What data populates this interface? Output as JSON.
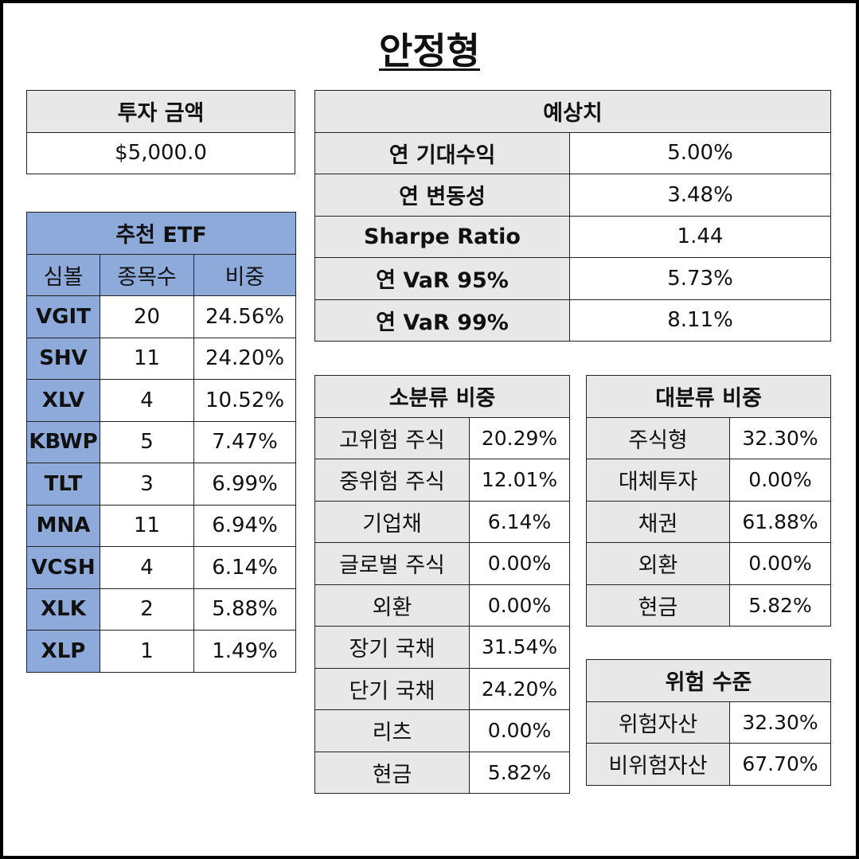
{
  "page_title": "안정형",
  "investment": {
    "header": "투자 금액",
    "value": "$5,000.0"
  },
  "recommended_etf": {
    "header": "추천 ETF",
    "columns": [
      "심볼",
      "종목수",
      "비중"
    ],
    "rows": [
      {
        "symbol": "VGIT",
        "count": "20",
        "weight": "24.56%"
      },
      {
        "symbol": "SHV",
        "count": "11",
        "weight": "24.20%"
      },
      {
        "symbol": "XLV",
        "count": "4",
        "weight": "10.52%"
      },
      {
        "symbol": "KBWP",
        "count": "5",
        "weight": "7.47%"
      },
      {
        "symbol": "TLT",
        "count": "3",
        "weight": "6.99%"
      },
      {
        "symbol": "MNA",
        "count": "11",
        "weight": "6.94%"
      },
      {
        "symbol": "VCSH",
        "count": "4",
        "weight": "6.14%"
      },
      {
        "symbol": "XLK",
        "count": "2",
        "weight": "5.88%"
      },
      {
        "symbol": "XLP",
        "count": "1",
        "weight": "1.49%"
      }
    ]
  },
  "expected": {
    "header": "예상치",
    "rows": [
      {
        "label": "연 기대수익",
        "value": "5.00%"
      },
      {
        "label": "연 변동성",
        "value": "3.48%"
      },
      {
        "label": "Sharpe Ratio",
        "value": "1.44"
      },
      {
        "label": "연 VaR 95%",
        "value": "5.73%"
      },
      {
        "label": "연 VaR 99%",
        "value": "8.11%"
      }
    ]
  },
  "sub_category": {
    "header": "소분류 비중",
    "rows": [
      {
        "label": "고위험 주식",
        "value": "20.29%"
      },
      {
        "label": "중위험 주식",
        "value": "12.01%"
      },
      {
        "label": "기업채",
        "value": "6.14%"
      },
      {
        "label": "글로벌 주식",
        "value": "0.00%"
      },
      {
        "label": "외환",
        "value": "0.00%"
      },
      {
        "label": "장기 국채",
        "value": "31.54%"
      },
      {
        "label": "단기 국채",
        "value": "24.20%"
      },
      {
        "label": "리츠",
        "value": "0.00%"
      },
      {
        "label": "현금",
        "value": "5.82%"
      }
    ]
  },
  "main_category": {
    "header": "대분류 비중",
    "rows": [
      {
        "label": "주식형",
        "value": "32.30%"
      },
      {
        "label": "대체투자",
        "value": "0.00%"
      },
      {
        "label": "채권",
        "value": "61.88%"
      },
      {
        "label": "외환",
        "value": "0.00%"
      },
      {
        "label": "현금",
        "value": "5.82%"
      }
    ]
  },
  "risk_level": {
    "header": "위험 수준",
    "rows": [
      {
        "label": "위험자산",
        "value": "32.30%"
      },
      {
        "label": "비위험자산",
        "value": "67.70%"
      }
    ]
  }
}
